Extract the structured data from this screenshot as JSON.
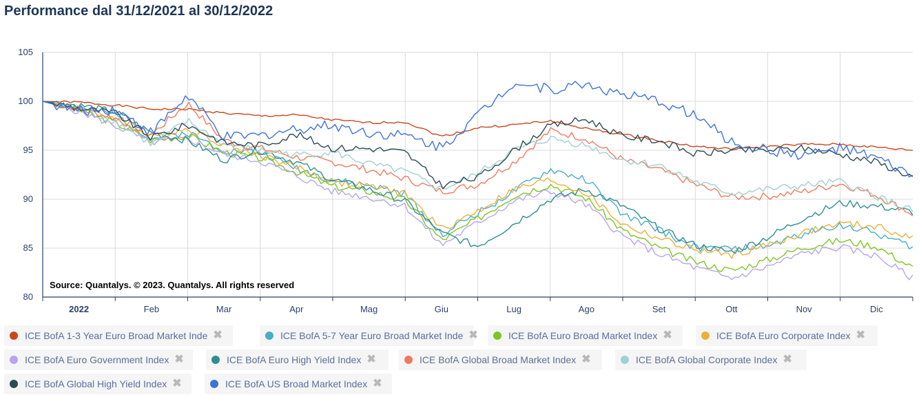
{
  "title": "Performance dal 31/12/2021 al 30/12/2022",
  "source_note": "Source: Quantalys. © 2023. Quantalys. All rights reserved",
  "close_glyph": "✖",
  "chart_data": {
    "type": "line",
    "ylim": [
      80,
      105
    ],
    "yticks": [
      80,
      85,
      90,
      95,
      100,
      105
    ],
    "xlim": [
      0,
      12
    ],
    "month_labels": [
      "2022",
      "Feb",
      "Mar",
      "Apr",
      "Mag",
      "Giu",
      "Lug",
      "Ago",
      "Set",
      "Ott",
      "Nov",
      "Dic"
    ],
    "month_label_positions": [
      0.5,
      1.5,
      2.5,
      3.5,
      4.5,
      5.5,
      6.5,
      7.5,
      8.5,
      9.5,
      10.5,
      11.5
    ],
    "grid": true,
    "legend_placement": "bottom",
    "series": [
      {
        "name": "ICE BofA 1-3 Year Euro Broad Market Inde",
        "color": "#c8471f",
        "x": [
          0,
          0.5,
          1,
          1.5,
          2,
          2.5,
          3,
          3.5,
          4,
          4.5,
          5,
          5.5,
          6,
          6.5,
          7,
          7.5,
          8,
          8.5,
          9,
          9.5,
          10,
          10.5,
          11,
          11.5,
          12
        ],
        "y": [
          100,
          99.9,
          99.6,
          99.2,
          99.2,
          98.8,
          98.5,
          98.6,
          98.1,
          97.8,
          97.9,
          96.4,
          97.3,
          97.6,
          98.0,
          97.2,
          96.6,
          96.0,
          95.4,
          95.1,
          95.4,
          95.6,
          95.6,
          95.3,
          95.0
        ]
      },
      {
        "name": "ICE BofA 5-7 Year Euro Broad Market Inde",
        "color": "#4bacc6",
        "x": [
          0,
          0.5,
          1,
          1.5,
          2,
          2.5,
          3,
          3.5,
          4,
          4.5,
          5,
          5.5,
          6,
          6.5,
          7,
          7.5,
          8,
          8.5,
          9,
          9.5,
          10,
          10.5,
          11,
          11.5,
          12
        ],
        "y": [
          100,
          99.4,
          98.6,
          96.2,
          96.8,
          95.0,
          94.8,
          93.2,
          91.9,
          91.4,
          90.5,
          86.4,
          88.6,
          90.8,
          93.0,
          92.0,
          88.4,
          86.9,
          85.0,
          84.9,
          85.2,
          86.5,
          87.4,
          86.5,
          85.1
        ]
      },
      {
        "name": "ICE BofA Euro Broad Market Index",
        "color": "#7cc623",
        "x": [
          0,
          0.5,
          1,
          1.5,
          2,
          2.5,
          3,
          3.5,
          4,
          4.5,
          5,
          5.5,
          6,
          6.5,
          7,
          7.5,
          8,
          8.5,
          9,
          9.5,
          10,
          10.5,
          11,
          11.5,
          12
        ],
        "y": [
          100,
          99.1,
          97.8,
          96.0,
          96.5,
          94.8,
          94.2,
          92.8,
          91.3,
          90.8,
          89.9,
          85.8,
          88.0,
          90.4,
          91.5,
          90.1,
          86.8,
          85.0,
          83.6,
          82.7,
          83.8,
          85.1,
          85.8,
          85.2,
          83.0
        ]
      },
      {
        "name": "ICE BofA Euro Corporate Index",
        "color": "#e8b13a",
        "x": [
          0,
          0.5,
          1,
          1.5,
          2,
          2.5,
          3,
          3.5,
          4,
          4.5,
          5,
          5.5,
          6,
          6.5,
          7,
          7.5,
          8,
          8.5,
          9,
          9.5,
          10,
          10.5,
          11,
          11.5,
          12
        ],
        "y": [
          100,
          99.3,
          98.3,
          96.3,
          97.2,
          95.6,
          94.5,
          93.3,
          91.8,
          91.3,
          90.6,
          86.9,
          88.8,
          91.0,
          92.0,
          90.6,
          87.4,
          86.0,
          84.8,
          84.3,
          85.3,
          86.6,
          87.5,
          87.2,
          86.0
        ]
      },
      {
        "name": "ICE BofA Euro Government Index",
        "color": "#b8a3ee",
        "x": [
          0,
          0.5,
          1,
          1.5,
          2,
          2.5,
          3,
          3.5,
          4,
          4.5,
          5,
          5.5,
          6,
          6.5,
          7,
          7.5,
          8,
          8.5,
          9,
          9.5,
          10,
          10.5,
          11,
          11.5,
          12
        ],
        "y": [
          100,
          99.0,
          97.5,
          95.8,
          96.2,
          94.6,
          93.9,
          92.4,
          90.8,
          90.2,
          89.3,
          85.3,
          87.6,
          89.8,
          90.8,
          89.4,
          86.2,
          84.4,
          83.0,
          81.9,
          83.1,
          84.5,
          85.1,
          84.2,
          81.9
        ]
      },
      {
        "name": "ICE BofA Euro High Yield Index",
        "color": "#2f8c95",
        "x": [
          0,
          0.5,
          1,
          1.5,
          2,
          2.5,
          3,
          3.5,
          4,
          4.5,
          5,
          5.5,
          6,
          6.5,
          7,
          7.5,
          8,
          8.5,
          9,
          9.5,
          10,
          10.5,
          11,
          11.5,
          12
        ],
        "y": [
          100,
          99.6,
          98.9,
          96.8,
          96.0,
          94.0,
          95.0,
          93.8,
          92.0,
          91.0,
          89.8,
          86.5,
          85.2,
          87.5,
          90.0,
          91.0,
          89.3,
          87.0,
          85.3,
          84.6,
          86.1,
          88.1,
          89.6,
          89.3,
          88.7
        ]
      },
      {
        "name": "ICE BofA Global Broad Market Index",
        "color": "#ef7b5c",
        "x": [
          0,
          0.5,
          1,
          1.5,
          2,
          2.5,
          3,
          3.5,
          4,
          4.5,
          5,
          5.5,
          6,
          6.5,
          7,
          7.5,
          8,
          8.5,
          9,
          9.5,
          10,
          10.5,
          11,
          11.5,
          12
        ],
        "y": [
          100,
          99.2,
          98.3,
          96.6,
          99.8,
          96.0,
          95.2,
          94.3,
          93.8,
          93.0,
          92.1,
          90.8,
          91.5,
          93.8,
          97.0,
          96.2,
          94.0,
          93.0,
          91.5,
          90.2,
          90.3,
          90.8,
          91.6,
          90.4,
          88.5
        ]
      },
      {
        "name": "ICE BofA Global Corporate Index",
        "color": "#9fd0d3",
        "x": [
          0,
          0.5,
          1,
          1.5,
          2,
          2.5,
          3,
          3.5,
          4,
          4.5,
          5,
          5.5,
          6,
          6.5,
          7,
          7.5,
          8,
          8.5,
          9,
          9.5,
          10,
          10.5,
          11,
          11.5,
          12
        ],
        "y": [
          100,
          99.2,
          98.0,
          95.6,
          98.0,
          95.6,
          95.0,
          94.5,
          94.8,
          93.6,
          92.8,
          91.0,
          92.6,
          95.0,
          96.2,
          95.5,
          94.0,
          93.5,
          91.8,
          90.6,
          91.0,
          91.4,
          91.8,
          90.3,
          88.8
        ]
      },
      {
        "name": "ICE BofA Global High Yield Index",
        "color": "#2d4a57",
        "x": [
          0,
          0.5,
          1,
          1.5,
          2,
          2.5,
          3,
          3.5,
          4,
          4.5,
          5,
          5.5,
          6,
          6.5,
          7,
          7.5,
          8,
          8.5,
          9,
          9.5,
          10,
          10.5,
          11,
          11.5,
          12
        ],
        "y": [
          100,
          99.3,
          98.8,
          96.3,
          97.6,
          95.8,
          95.5,
          96.6,
          95.2,
          95.2,
          94.8,
          91.4,
          92.2,
          95.0,
          97.5,
          98.2,
          96.4,
          96.0,
          94.6,
          95.0,
          95.0,
          95.2,
          94.6,
          93.8,
          92.3
        ]
      },
      {
        "name": "ICE BofA US Broad Market Index",
        "color": "#3d72d9",
        "x": [
          0,
          0.5,
          1,
          1.5,
          2,
          2.5,
          3,
          3.5,
          4,
          4.5,
          5,
          5.5,
          6,
          6.5,
          7,
          7.5,
          8,
          8.5,
          9,
          9.5,
          10,
          10.5,
          11,
          11.5,
          12
        ],
        "y": [
          100,
          99.0,
          99.2,
          96.8,
          100.6,
          96.3,
          96.5,
          97.2,
          97.6,
          96.8,
          96.5,
          95.3,
          98.6,
          102.0,
          101.2,
          101.8,
          100.6,
          100.0,
          98.6,
          95.8,
          95.0,
          94.5,
          95.2,
          94.2,
          92.3
        ]
      }
    ]
  }
}
